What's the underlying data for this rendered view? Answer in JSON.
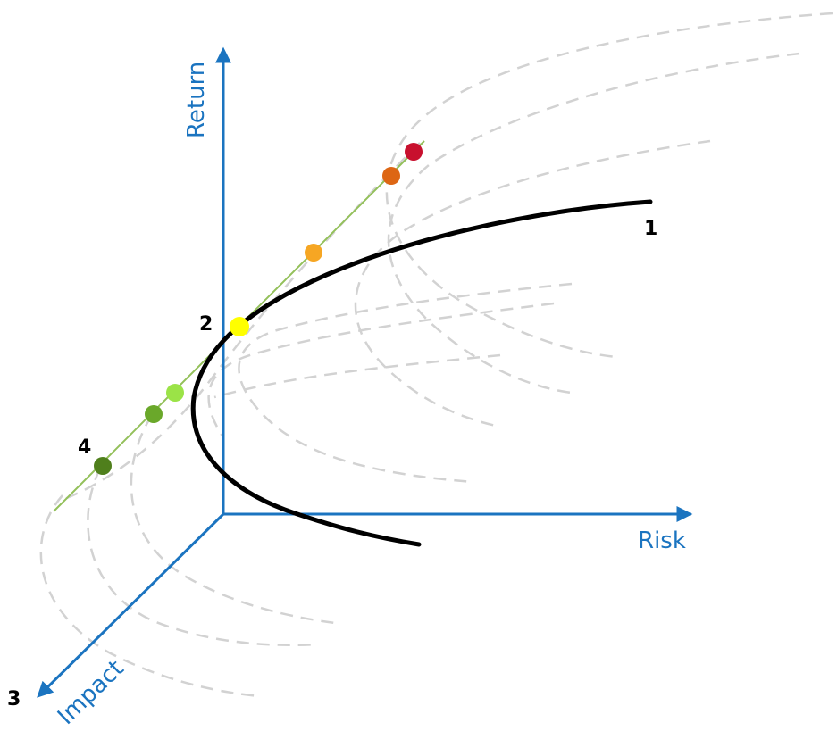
{
  "axes": {
    "return_label": "Return",
    "risk_label": "Risk",
    "impact_label": "Impact",
    "color": "#1b74c0"
  },
  "markers": {
    "m1": "1",
    "m2": "2",
    "m3": "3",
    "m4": "4"
  },
  "colors": {
    "frontier": "#000000",
    "dashed_surface": "#d2d2d2",
    "tangent_line": "#93c05a",
    "points": [
      "#c8102e",
      "#dd6614",
      "#f6a623",
      "#ffff00",
      "#9be347",
      "#6aa82a",
      "#4f7f1c"
    ]
  }
}
